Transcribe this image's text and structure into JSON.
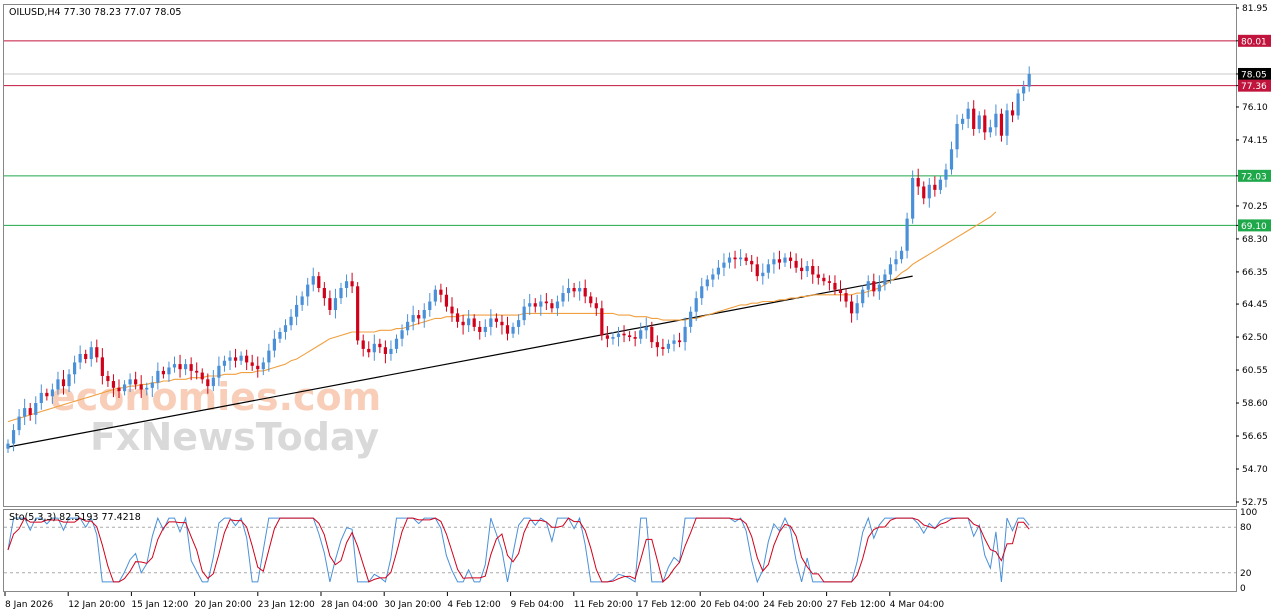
{
  "chart_data": {
    "type": "candlestick",
    "symbol_header": "OILUSD,H4  77.30 78.23 77.07 78.05",
    "ylim": [
      52.75,
      81.95
    ],
    "y_ticks": [
      "81.95",
      "80.01",
      "78.05",
      "77.36",
      "76.10",
      "74.15",
      "72.03",
      "70.25",
      "69.10",
      "68.30",
      "66.35",
      "64.45",
      "62.50",
      "60.55",
      "58.60",
      "56.65",
      "54.70",
      "52.75"
    ],
    "x_ticks": [
      "8 Jan 2026",
      "12 Jan 20:00",
      "15 Jan 12:00",
      "20 Jan 20:00",
      "23 Jan 12:00",
      "28 Jan 04:00",
      "30 Jan 20:00",
      "4 Feb 12:00",
      "9 Feb 04:00",
      "11 Feb 20:00",
      "17 Feb 12:00",
      "20 Feb 04:00",
      "24 Feb 20:00",
      "27 Feb 12:00",
      "4 Mar 04:00"
    ],
    "current_price": 78.05,
    "horizontal_levels": [
      {
        "value": 80.01,
        "label": "80.01",
        "color": "#c0143c"
      },
      {
        "value": 77.36,
        "label": "77.36",
        "color": "#c0143c"
      },
      {
        "value": 72.03,
        "label": "72.03",
        "color": "#1fa84a"
      },
      {
        "value": 69.1,
        "label": "69.10",
        "color": "#1fa84a"
      }
    ],
    "trendline": {
      "from": [
        0,
        56.0
      ],
      "to": [
        163,
        66.1
      ]
    },
    "closes": [
      56.2,
      57.0,
      57.8,
      58.3,
      57.9,
      58.6,
      59.2,
      59.0,
      59.4,
      60.0,
      59.6,
      60.3,
      61.0,
      61.5,
      61.2,
      61.9,
      61.3,
      60.2,
      59.9,
      59.5,
      59.3,
      59.7,
      60.0,
      59.7,
      59.4,
      59.5,
      59.8,
      60.5,
      60.3,
      60.7,
      60.9,
      60.6,
      60.9,
      60.5,
      60.4,
      60.0,
      59.6,
      60.1,
      60.8,
      61.1,
      61.3,
      61.1,
      61.4,
      61.0,
      60.8,
      60.6,
      61.0,
      61.7,
      62.4,
      62.8,
      63.2,
      63.7,
      64.4,
      64.9,
      65.6,
      66.1,
      65.4,
      64.8,
      64.1,
      64.8,
      65.4,
      65.8,
      65.5,
      62.3,
      61.8,
      61.6,
      62.1,
      61.9,
      61.5,
      61.8,
      62.4,
      62.9,
      63.4,
      63.8,
      63.6,
      64.1,
      64.6,
      65.3,
      65.0,
      64.3,
      63.9,
      63.4,
      63.2,
      63.6,
      63.1,
      62.8,
      63.1,
      63.6,
      63.4,
      63.2,
      62.7,
      63.1,
      63.5,
      64.3,
      64.5,
      64.3,
      64.6,
      64.5,
      64.2,
      64.6,
      65.1,
      65.4,
      65.2,
      65.4,
      64.9,
      64.5,
      64.2,
      62.6,
      62.4,
      62.5,
      62.7,
      62.6,
      62.5,
      62.4,
      62.9,
      63.1,
      62.2,
      61.9,
      61.8,
      62.1,
      62.3,
      62.2,
      63.1,
      64.0,
      64.8,
      65.5,
      65.9,
      66.2,
      66.6,
      66.9,
      67.2,
      67.1,
      67.2,
      67.0,
      66.8,
      66.1,
      66.3,
      66.8,
      67.1,
      66.9,
      67.2,
      67.0,
      66.6,
      66.4,
      66.7,
      66.2,
      66.0,
      65.8,
      65.7,
      65.3,
      65.1,
      64.6,
      63.9,
      64.5,
      65.3,
      65.8,
      65.2,
      65.6,
      66.2,
      66.8,
      67.1,
      67.6,
      69.5,
      71.9,
      71.4,
      70.7,
      71.5,
      71.2,
      71.8,
      72.4,
      73.6,
      75.1,
      75.4,
      76.0,
      74.8,
      75.6,
      74.6,
      74.9,
      75.7,
      74.4,
      75.9,
      75.6,
      76.9,
      77.3,
      78.05
    ],
    "ma_values": [
      57.5,
      57.6,
      57.7,
      57.8,
      57.9,
      58.0,
      58.1,
      58.2,
      58.3,
      58.4,
      58.5,
      58.6,
      58.7,
      58.8,
      58.9,
      59.0,
      59.1,
      59.2,
      59.3,
      59.4,
      59.5,
      59.5,
      59.6,
      59.6,
      59.7,
      59.7,
      59.8,
      59.8,
      59.9,
      59.9,
      60.0,
      60.0,
      60.0,
      60.1,
      60.1,
      60.1,
      60.2,
      60.2,
      60.2,
      60.3,
      60.3,
      60.3,
      60.4,
      60.4,
      60.4,
      60.5,
      60.5,
      60.6,
      60.7,
      60.8,
      60.9,
      61.1,
      61.2,
      61.4,
      61.6,
      61.8,
      62.0,
      62.2,
      62.4,
      62.5,
      62.6,
      62.7,
      62.8,
      62.8,
      62.8,
      62.8,
      62.8,
      62.9,
      62.9,
      62.9,
      63.0,
      63.0,
      63.1,
      63.2,
      63.3,
      63.4,
      63.5,
      63.6,
      63.6,
      63.7,
      63.7,
      63.7,
      63.8,
      63.8,
      63.8,
      63.8,
      63.8,
      63.8,
      63.8,
      63.8,
      63.8,
      63.8,
      63.8,
      63.9,
      63.9,
      63.9,
      63.9,
      63.9,
      63.9,
      63.9,
      63.9,
      63.9,
      63.9,
      63.9,
      63.9,
      63.9,
      63.9,
      63.9,
      63.9,
      63.9,
      63.8,
      63.8,
      63.8,
      63.7,
      63.7,
      63.7,
      63.6,
      63.6,
      63.5,
      63.5,
      63.5,
      63.5,
      63.5,
      63.6,
      63.6,
      63.7,
      63.8,
      63.9,
      64.0,
      64.1,
      64.2,
      64.3,
      64.4,
      64.4,
      64.5,
      64.5,
      64.6,
      64.6,
      64.6,
      64.7,
      64.7,
      64.8,
      64.8,
      64.9,
      64.9,
      65.0,
      65.0,
      65.0,
      65.0,
      65.0,
      65.0,
      65.0,
      65.0,
      65.1,
      65.1,
      65.2,
      65.3,
      65.4,
      65.6,
      65.8,
      66.0,
      66.3,
      66.5,
      66.8,
      67.0,
      67.2,
      67.4,
      67.6,
      67.8,
      68.0,
      68.2,
      68.4,
      68.6,
      68.8,
      69.0,
      69.2,
      69.4,
      69.6,
      69.9
    ],
    "stochastic": {
      "label": "Sto(5,3,3) 82.5193 77.4218",
      "main": 82.5193,
      "signal": 77.4218,
      "levels": [
        20,
        80
      ],
      "y_ticks": [
        "100",
        "80",
        "20",
        "0"
      ]
    }
  },
  "watermark": {
    "line1": "economies.com",
    "line2": "FxNewsToday"
  },
  "colors": {
    "bull": "#4a90d9",
    "bear": "#d0021b",
    "ma": "#f0a040",
    "trend": "#000000",
    "stoch_main": "#4a90d9",
    "stoch_signal": "#d0021b",
    "price_tag": "#000000"
  }
}
